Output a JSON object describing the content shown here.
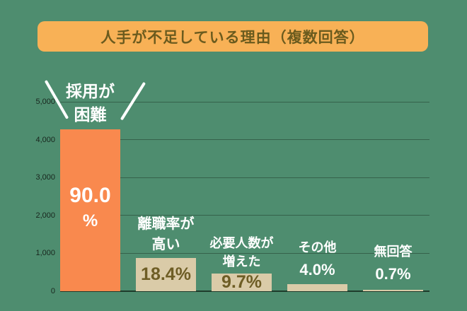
{
  "title": "人手が不足している理由（複数回答）",
  "colors": {
    "background": "#4E8D6F",
    "banner_bg": "#F8B156",
    "banner_text": "#6B5B1E",
    "bar_orange": "#F9894E",
    "bar_beige": "#DACBA8",
    "value_dark": "#6E5D25",
    "value_light": "#FFFFFF",
    "category_label": "#FFFFFF",
    "gridline": "#35624B",
    "baseline": "#1E3B2B",
    "tick_text": "#18251D",
    "emphasis_slash": "#FFFFFF"
  },
  "chart_data": {
    "type": "bar",
    "title": "人手が不足している理由（複数回答）",
    "categories": [
      "採用が困難",
      "離職率が高い",
      "必要人数が増えた",
      "その他",
      "無回答"
    ],
    "values": [
      90.0,
      18.4,
      9.7,
      4.0,
      0.7
    ],
    "values_unit": "%",
    "value_labels": [
      "90.0%",
      "18.4%",
      "9.7%",
      "4.0%",
      "0.7%"
    ],
    "approx_counts": [
      4264,
      872,
      460,
      190,
      33
    ],
    "xlabel": "",
    "ylabel": "",
    "ylim": [
      0,
      5000
    ],
    "ytick_values": [
      0,
      1000,
      2000,
      3000,
      4000,
      5000
    ],
    "ytick_labels": [
      "0",
      "1,000",
      "2,000",
      "3,000",
      "4,000",
      "5,000"
    ],
    "grid": true,
    "legend": false,
    "highlight_category": "採用が困難",
    "bars": [
      {
        "category_lines": [
          "採用が",
          "困難"
        ],
        "value_lines": [
          "90.0",
          "%"
        ],
        "value_text": "90.0%",
        "pct": 90.0,
        "approx_count": 4264,
        "fill": "bar_orange",
        "value_pos": "inside",
        "value_color": "value_light",
        "emphasis": true
      },
      {
        "category_lines": [
          "離職率が",
          "高い"
        ],
        "value_lines": [
          "18.4%"
        ],
        "value_text": "18.4%",
        "pct": 18.4,
        "approx_count": 872,
        "fill": "bar_beige",
        "value_pos": "inside",
        "value_color": "value_dark",
        "emphasis": false
      },
      {
        "category_lines": [
          "必要人数が",
          "増えた"
        ],
        "value_lines": [
          "9.7%"
        ],
        "value_text": "9.7%",
        "pct": 9.7,
        "approx_count": 460,
        "fill": "bar_beige",
        "value_pos": "inside",
        "value_color": "value_dark",
        "emphasis": false
      },
      {
        "category_lines": [
          "その他"
        ],
        "value_lines": [
          "4.0%"
        ],
        "value_text": "4.0%",
        "pct": 4.0,
        "approx_count": 190,
        "fill": "bar_beige",
        "value_pos": "above",
        "value_color": "value_light",
        "emphasis": false
      },
      {
        "category_lines": [
          "無回答"
        ],
        "value_lines": [
          "0.7%"
        ],
        "value_text": "0.7%",
        "pct": 0.7,
        "approx_count": 33,
        "fill": "bar_beige",
        "value_pos": "above",
        "value_color": "value_light",
        "emphasis": false
      }
    ]
  }
}
